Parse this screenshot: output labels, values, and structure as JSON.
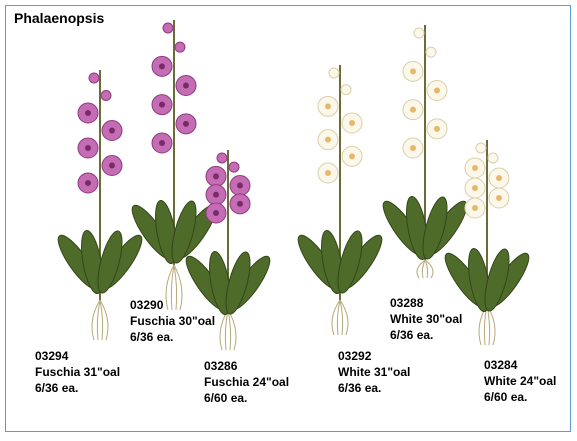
{
  "header": {
    "title": "Phalaenopsis"
  },
  "products": [
    {
      "code": "03294",
      "name": "Fuschia 31\"oal",
      "pack": "6/36 ea."
    },
    {
      "code": "03290",
      "name": "Fuschia 30\"oal",
      "pack": "6/36 ea."
    },
    {
      "code": "03286",
      "name": "Fuschia 24\"oal",
      "pack": "6/60 ea."
    },
    {
      "code": "03292",
      "name": "White 31\"oal",
      "pack": "6/36 ea."
    },
    {
      "code": "03288",
      "name": "White 30\"oal",
      "pack": "6/36 ea."
    },
    {
      "code": "03284",
      "name": "White 24\"oal",
      "pack": "6/60 ea."
    }
  ]
}
